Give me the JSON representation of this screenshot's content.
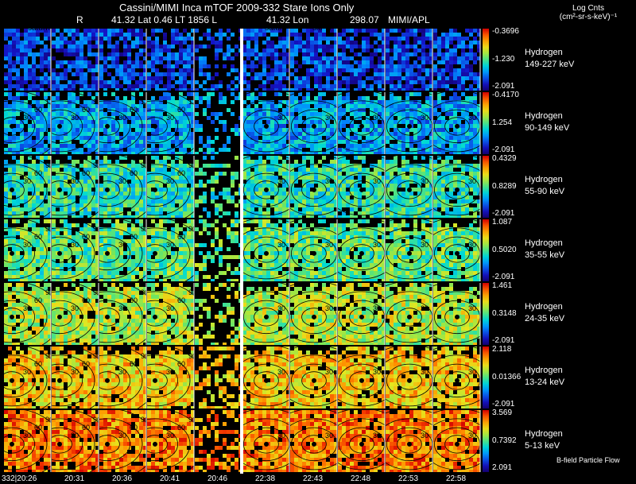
{
  "title": "Cassini/MIMI Inca mTOF  2009-332   Stare    Ions Only",
  "subtitle_r": "R",
  "subtitle_lat": "41.32 Lat 0.46 LT 1856 L",
  "subtitle_lon": "41.32 Lon",
  "subtitle_val": "298.07",
  "subtitle_org": "MIMI/APL",
  "units_line1": "Log Cnts",
  "units_line2": "(cm²-sr-s-keV)⁻¹",
  "footer_note": "B-field  Particle Flow",
  "chart_data": {
    "type": "heatmap",
    "description_free": false,
    "columns": 10,
    "time_labels": [
      "332|20:26",
      "20:31",
      "20:36",
      "20:41",
      "20:46",
      "22:38",
      "22:43",
      "22:48",
      "22:53",
      "22:58"
    ],
    "column_insets": [
      "saturn",
      "",
      "",
      "",
      "",
      "saturn",
      "skr-w",
      "",
      "",
      ""
    ],
    "rows": [
      {
        "species": "Hydrogen",
        "energy": "149-227 keV",
        "cbar_max": "-0.3696",
        "cbar_mid": "-1.230",
        "cbar_min": "-2.091",
        "level": 0.18,
        "contours": false,
        "labels": []
      },
      {
        "species": "Hydrogen",
        "energy": "90-149 keV",
        "cbar_max": "-0.4170",
        "cbar_mid": "1.254",
        "cbar_min": "-2.091",
        "level": 0.32,
        "contours": true,
        "labels": [
          "30",
          "60",
          "120",
          "150"
        ]
      },
      {
        "species": "Hydrogen",
        "energy": "55-90 keV",
        "cbar_max": "0.4329",
        "cbar_mid": "0.8289",
        "cbar_min": "-2.091",
        "level": 0.46,
        "contours": true,
        "labels": [
          "30",
          "60",
          "90",
          "120",
          "150"
        ]
      },
      {
        "species": "Hydrogen",
        "energy": "35-55 keV",
        "cbar_max": "1.087",
        "cbar_mid": "0.5020",
        "cbar_min": "-2.091",
        "level": 0.52,
        "contours": true,
        "labels": [
          "30",
          "60",
          "90",
          "120",
          "150"
        ]
      },
      {
        "species": "Hydrogen",
        "energy": "24-35 keV",
        "cbar_max": "1.461",
        "cbar_mid": "0.3148",
        "cbar_min": "-2.091",
        "level": 0.62,
        "contours": true,
        "labels": [
          "30",
          "60",
          "90",
          "120",
          "150"
        ]
      },
      {
        "species": "Hydrogen",
        "energy": "13-24 keV",
        "cbar_max": "2.118",
        "cbar_mid": "0.01366",
        "cbar_min": "-2.091",
        "level": 0.74,
        "contours": true,
        "labels": [
          "30",
          "60",
          "90",
          "120",
          "150"
        ]
      },
      {
        "species": "Hydrogen",
        "energy": "5-13 keV",
        "cbar_max": "3.569",
        "cbar_mid": "0.7392",
        "cbar_min": "2.091",
        "level": 0.84,
        "contours": true,
        "labels": [
          "30",
          "60",
          "90",
          "120",
          "150"
        ]
      }
    ]
  }
}
